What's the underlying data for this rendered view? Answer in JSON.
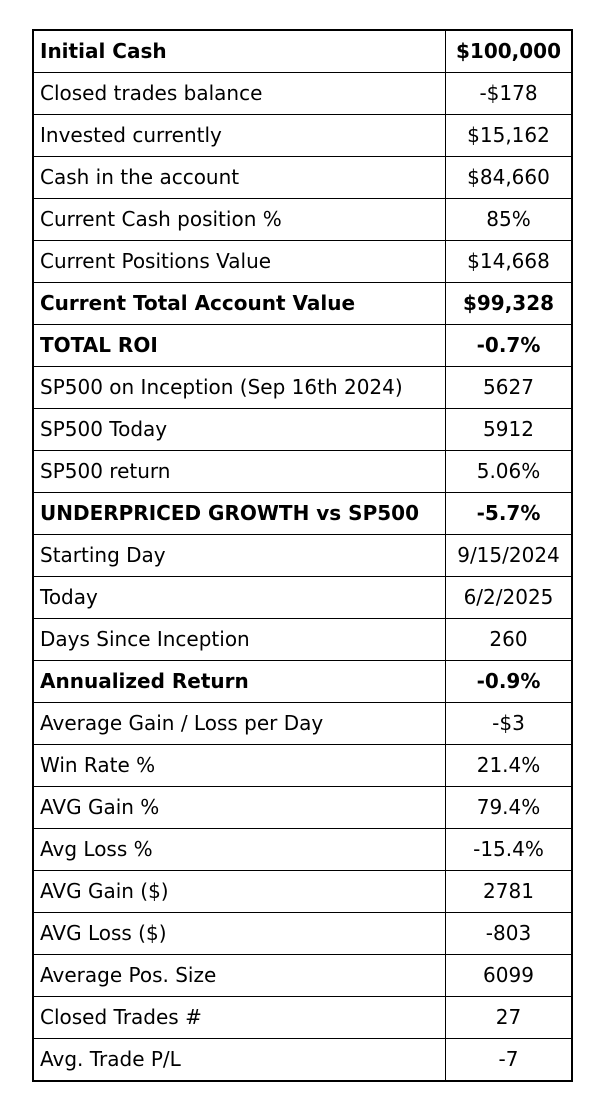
{
  "table": {
    "rows": [
      {
        "label": "Initial Cash",
        "value": "$100,000",
        "bold": true
      },
      {
        "label": "Closed trades balance",
        "value": "-$178",
        "bold": false
      },
      {
        "label": "Invested currently",
        "value": "$15,162",
        "bold": false
      },
      {
        "label": "Cash in the account",
        "value": "$84,660",
        "bold": false
      },
      {
        "label": "Current Cash position %",
        "value": "85%",
        "bold": false
      },
      {
        "label": "Current Positions Value",
        "value": "$14,668",
        "bold": false
      },
      {
        "label": "Current Total Account Value",
        "value": "$99,328",
        "bold": true
      },
      {
        "label": "TOTAL ROI",
        "value": "-0.7%",
        "bold": true
      },
      {
        "label": "SP500 on Inception (Sep 16th 2024)",
        "value": "5627",
        "bold": false
      },
      {
        "label": "SP500 Today",
        "value": "5912",
        "bold": false
      },
      {
        "label": "SP500 return",
        "value": "5.06%",
        "bold": false
      },
      {
        "label": "UNDERPRICED GROWTH vs SP500",
        "value": "-5.7%",
        "bold": true
      },
      {
        "label": "Starting Day",
        "value": "9/15/2024",
        "bold": false
      },
      {
        "label": "Today",
        "value": "6/2/2025",
        "bold": false
      },
      {
        "label": "Days Since Inception",
        "value": "260",
        "bold": false
      },
      {
        "label": "Annualized Return",
        "value": "-0.9%",
        "bold": true
      },
      {
        "label": "Average Gain / Loss per Day",
        "value": "-$3",
        "bold": false
      },
      {
        "label": "Win Rate %",
        "value": "21.4%",
        "bold": false
      },
      {
        "label": "AVG Gain %",
        "value": "79.4%",
        "bold": false
      },
      {
        "label": "Avg Loss %",
        "value": "-15.4%",
        "bold": false
      },
      {
        "label": "AVG Gain ($)",
        "value": "2781",
        "bold": false
      },
      {
        "label": "AVG Loss ($)",
        "value": "-803",
        "bold": false
      },
      {
        "label": "Average Pos. Size",
        "value": "6099",
        "bold": false
      },
      {
        "label": "Closed Trades #",
        "value": "27",
        "bold": false
      },
      {
        "label": "Avg. Trade P/L",
        "value": "-7",
        "bold": false
      }
    ]
  }
}
